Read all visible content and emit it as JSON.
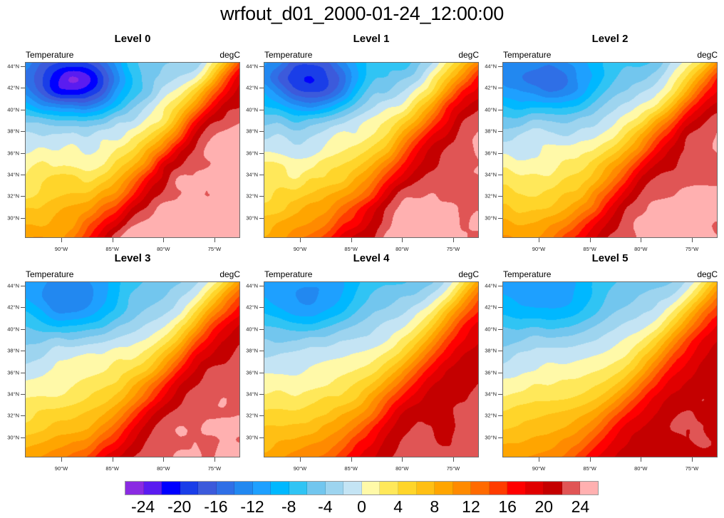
{
  "chart_data": {
    "type": "heatmap",
    "title": "wrfout_d01_2000-01-24_12:00:00",
    "variable": "Temperature",
    "units": "degC",
    "panels": [
      {
        "title": "Level 0"
      },
      {
        "title": "Level 1"
      },
      {
        "title": "Level 2"
      },
      {
        "title": "Level 3"
      },
      {
        "title": "Level 4"
      },
      {
        "title": "Level 5"
      }
    ],
    "lat_ticks": [
      "44°N",
      "42°N",
      "40°N",
      "38°N",
      "36°N",
      "34°N",
      "32°N",
      "30°N"
    ],
    "lon_ticks": [
      "90°W",
      "85°W",
      "80°W",
      "75°W"
    ],
    "lat_values": [
      44,
      42,
      40,
      38,
      36,
      34,
      32,
      30
    ],
    "lon_values": [
      -90,
      -85,
      -80,
      -75
    ],
    "colorbar": {
      "levels": [
        -24,
        -22,
        -20,
        -18,
        -16,
        -14,
        -12,
        -10,
        -8,
        -6,
        -4,
        -2,
        0,
        2,
        4,
        6,
        8,
        10,
        12,
        14,
        16,
        18,
        20,
        22,
        24
      ],
      "tick_labels": [
        "-24",
        "-20",
        "-16",
        "-12",
        "-8",
        "-4",
        "0",
        "4",
        "8",
        "12",
        "16",
        "20",
        "24"
      ],
      "tick_values": [
        -24,
        -20,
        -16,
        -12,
        -8,
        -4,
        0,
        4,
        8,
        12,
        16,
        20,
        24
      ],
      "colors": [
        "#8a2be2",
        "#5a1cf0",
        "#0000ff",
        "#1a3ee8",
        "#3c5adb",
        "#2f6fe6",
        "#2288f0",
        "#1ea0ff",
        "#00b8ff",
        "#30c4f4",
        "#72c6ee",
        "#9dd4ef",
        "#c4e4f4",
        "#fff9a8",
        "#ffe85a",
        "#ffd52a",
        "#ffbf14",
        "#ffa500",
        "#ff8a00",
        "#ff6a00",
        "#ff3c00",
        "#ff0000",
        "#e00000",
        "#c40000",
        "#e05555",
        "#ffb0b0"
      ]
    }
  }
}
